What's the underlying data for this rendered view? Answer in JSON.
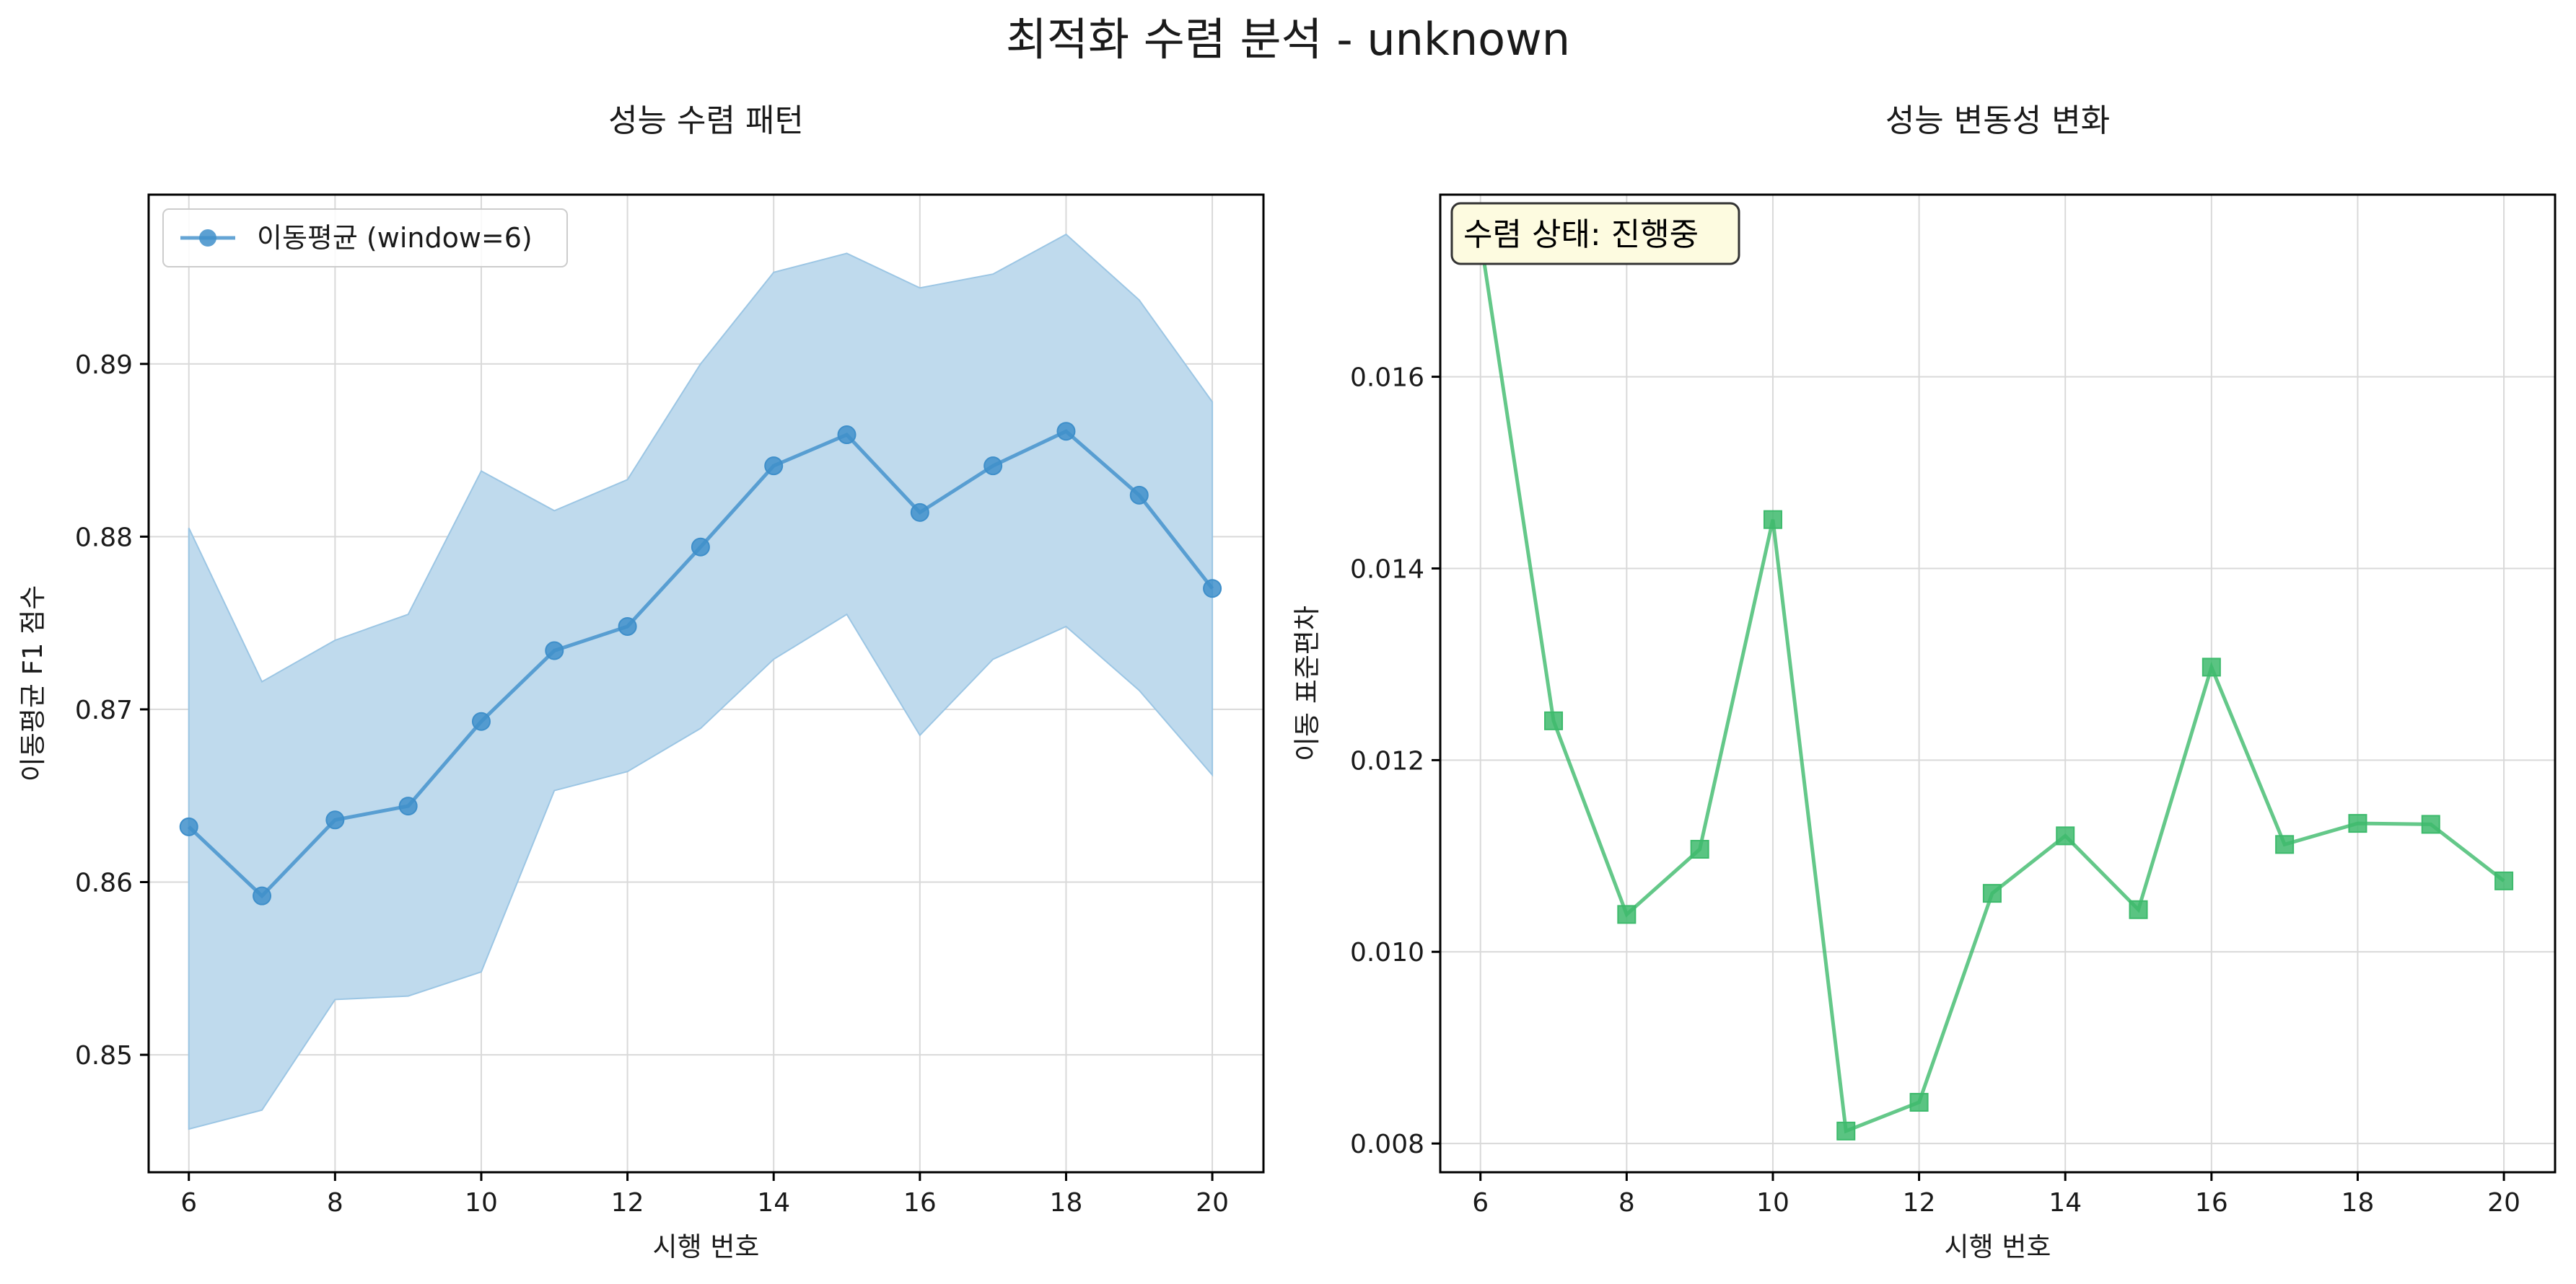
{
  "figure": {
    "title": "최적화 수렴 분석 - unknown"
  },
  "chart_data": [
    {
      "type": "line",
      "title": "성능 수렴 패턴",
      "xlabel": "시행 번호",
      "ylabel": "이동평균 F1 점수",
      "xlim": [
        5.45,
        20.7
      ],
      "ylim": [
        0.8432,
        0.8998
      ],
      "xticks": [
        6,
        8,
        10,
        12,
        14,
        16,
        18,
        20
      ],
      "yticks": [
        0.85,
        0.86,
        0.87,
        0.88,
        0.89
      ],
      "ytick_labels": [
        "0.85",
        "0.86",
        "0.87",
        "0.88",
        "0.89"
      ],
      "grid": true,
      "legend": "top-left",
      "x": [
        6,
        7,
        8,
        9,
        10,
        11,
        12,
        13,
        14,
        15,
        16,
        17,
        18,
        19,
        20
      ],
      "series": [
        {
          "name": "이동평균 (window=6)",
          "color": "#3f8fca",
          "marker": "circle",
          "values": [
            0.8632,
            0.8592,
            0.8636,
            0.8644,
            0.8693,
            0.8734,
            0.8748,
            0.8794,
            0.8841,
            0.8859,
            0.8814,
            0.8841,
            0.8861,
            0.8824,
            0.877
          ]
        }
      ],
      "band": {
        "color": "#bfdaed",
        "upper": [
          0.8805,
          0.8716,
          0.874,
          0.8755,
          0.8838,
          0.8815,
          0.8833,
          0.89,
          0.8953,
          0.8964,
          0.8944,
          0.8952,
          0.8975,
          0.8937,
          0.8878
        ],
        "lower": [
          0.8457,
          0.8468,
          0.8532,
          0.8534,
          0.8548,
          0.8653,
          0.8664,
          0.8689,
          0.8729,
          0.8755,
          0.8685,
          0.8729,
          0.8748,
          0.8711,
          0.8662
        ]
      }
    },
    {
      "type": "line",
      "title": "성능 변동성 변화",
      "xlabel": "시행 번호",
      "ylabel": "이동 표준편차",
      "xlim": [
        5.45,
        20.7
      ],
      "ylim": [
        0.0077,
        0.0179
      ],
      "xticks": [
        6,
        8,
        10,
        12,
        14,
        16,
        18,
        20
      ],
      "yticks": [
        0.008,
        0.01,
        0.012,
        0.014,
        0.016
      ],
      "ytick_labels": [
        "0.008",
        "0.010",
        "0.012",
        "0.014",
        "0.016"
      ],
      "grid": true,
      "annotation": "수렴 상태: 진행중",
      "x": [
        6,
        7,
        8,
        9,
        10,
        11,
        12,
        13,
        14,
        15,
        16,
        17,
        18,
        19,
        20
      ],
      "series": [
        {
          "color": "#3dba6c",
          "marker": "square",
          "values": [
            0.01745,
            0.01241,
            0.01039,
            0.01107,
            0.01451,
            0.00813,
            0.00843,
            0.01061,
            0.01121,
            0.01044,
            0.01297,
            0.01112,
            0.01134,
            0.01133,
            0.01074
          ]
        }
      ]
    }
  ]
}
